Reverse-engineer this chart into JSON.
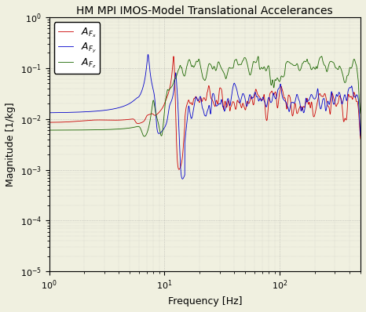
{
  "title": "HM MPI IMOS-Model Translational Accelerances",
  "xlabel": "Frequency [Hz]",
  "ylabel": "Magnitude [1/kg]",
  "xlim": [
    1,
    500
  ],
  "ylim": [
    1e-05,
    1.0
  ],
  "legend_labels": [
    "$A_{F_x}$",
    "$A_{F_y}$",
    "$A_{F_z}$"
  ],
  "line_colors": [
    "#CC0000",
    "#0000CC",
    "#1a6600"
  ],
  "background_color": "#f0f0e0",
  "grid_color": "#999999",
  "title_fontsize": 10,
  "axis_fontsize": 9,
  "legend_fontsize": 9
}
